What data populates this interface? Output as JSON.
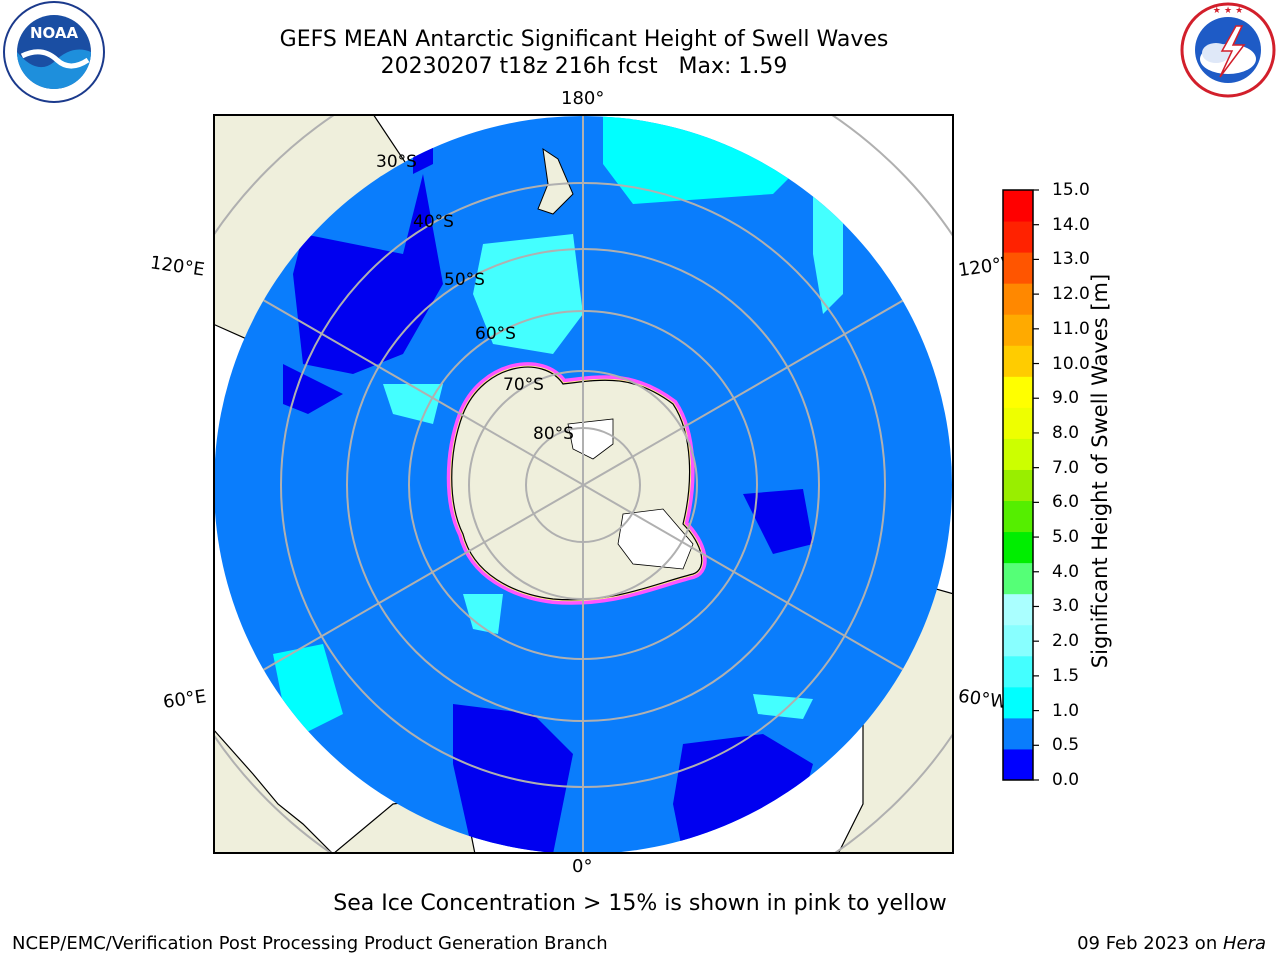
{
  "header": {
    "title_line1": "GEFS MEAN Antarctic Significant Height of Swell Waves",
    "title_line2": "20230207 t18z 216h fcst   Max: 1.59"
  },
  "logos": {
    "noaa_text": "NOAA",
    "noaa_ring_text": "NATIONAL OCEANIC AND ATMOSPHERIC ADMINISTRATION · U.S. DEPARTMENT OF COMMERCE",
    "nws_ring_text": "NATIONAL WEATHER SERVICE"
  },
  "map": {
    "projection": "south-polar-stereographic",
    "longitude_labels": {
      "top": "180°",
      "bottom": "0°",
      "upper_left": "120°E",
      "upper_right": "120°W",
      "lower_left": "60°E",
      "lower_right": "60°W"
    },
    "latitude_labels": [
      "30°S",
      "40°S",
      "50°S",
      "60°S",
      "70°S",
      "80°S"
    ],
    "colors": {
      "land": "#efefdc",
      "ocean_mid": "#0a7dfc",
      "ocean_low": "#0000f0",
      "swell_1_5": "#00ffff",
      "swell_1_0": "#44ffff",
      "grid": "#b0b0b0",
      "ice_pink": "#ff55ff",
      "ice_yellow": "#ffee88"
    }
  },
  "colorbar": {
    "label": "Significant Height of Swell Waves [m]",
    "ticks": [
      "15.0",
      "14.0",
      "13.0",
      "12.0",
      "11.0",
      "10.0",
      "9.0",
      "8.0",
      "7.0",
      "6.0",
      "5.0",
      "4.0",
      "3.0",
      "2.0",
      "1.5",
      "1.0",
      "0.5",
      "0.0"
    ],
    "colors_bottom_to_top": [
      "#0000ff",
      "#0a7dfc",
      "#00ffff",
      "#44ffff",
      "#88ffff",
      "#aaffff",
      "#55ff77",
      "#00ee00",
      "#55ee00",
      "#99ee00",
      "#ccff00",
      "#eeff00",
      "#ffff00",
      "#ffcc00",
      "#ffaa00",
      "#ff8800",
      "#ff5500",
      "#ff2200",
      "#ff0000"
    ]
  },
  "footer": {
    "note": "Sea Ice Concentration > 15% is shown in pink to yellow",
    "credit_left": "NCEP/EMC/Verification Post Processing Product Generation Branch",
    "date": "09 Feb 2023 on ",
    "host": "Hera"
  }
}
